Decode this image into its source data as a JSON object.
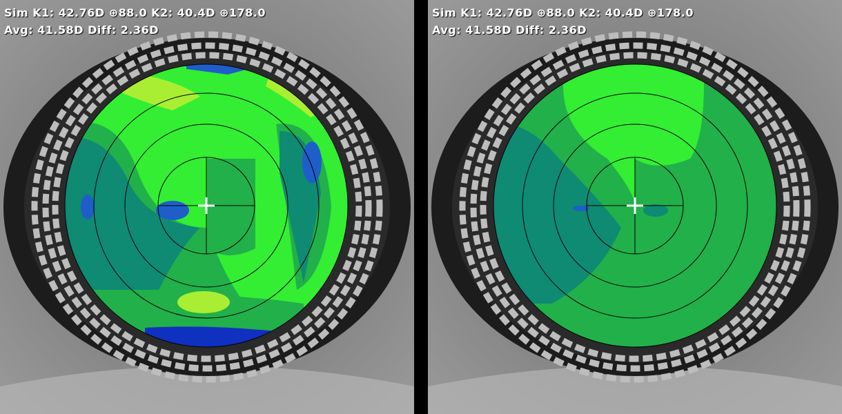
{
  "panels": [
    {
      "id": "left",
      "readout": {
        "line1": "Sim K1: 42.76D ⊕88.0 K2: 40.4D ⊕178.0",
        "line2": "Avg: 41.58D Diff: 2.36D"
      },
      "map_type": "axial-curvature-detailed"
    },
    {
      "id": "right",
      "readout": {
        "line1": "Sim K1: 42.76D ⊕88.0 K2: 40.4D ⊕178.0",
        "line2": "Avg: 41.58D Diff: 2.36D"
      },
      "map_type": "axial-curvature-smoothed"
    }
  ],
  "colors": {
    "bright_green": "#33ee33",
    "mid_green": "#22b04a",
    "teal": "#0f8a73",
    "yellow_green": "#aaee33",
    "blue": "#1f5ec8",
    "deep_blue": "#1030c0",
    "eye_gray": "#7a7a7a"
  }
}
